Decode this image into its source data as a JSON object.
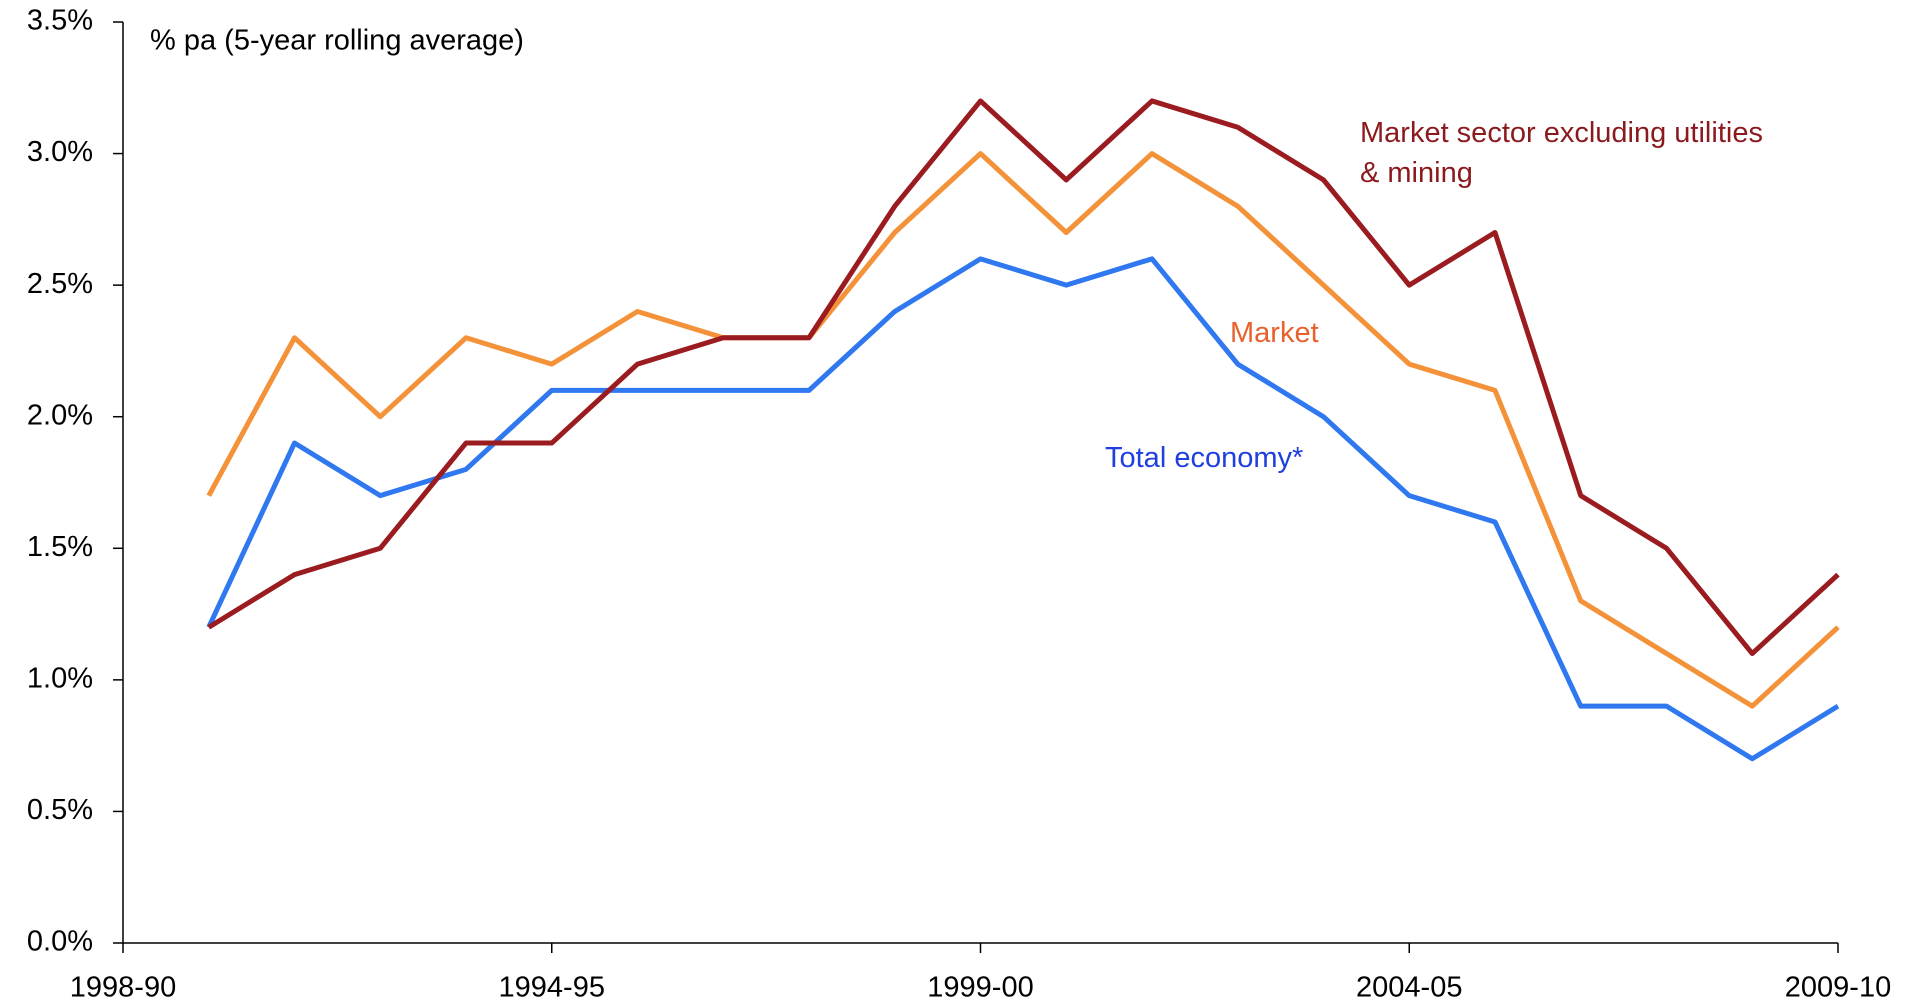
{
  "chart_data": {
    "type": "line",
    "subtitle": "% pa (5-year rolling average)",
    "categories": [
      "1998-90",
      null,
      null,
      null,
      null,
      "1994-95",
      null,
      null,
      null,
      null,
      "1999-00",
      null,
      null,
      null,
      null,
      "2004-05",
      null,
      null,
      null,
      null,
      "2009-10"
    ],
    "series": [
      {
        "name": "Total economy*",
        "color": "#2f78f0",
        "values": [
          null,
          1.2,
          1.9,
          1.7,
          1.8,
          2.1,
          2.1,
          2.1,
          2.1,
          2.4,
          2.6,
          2.5,
          2.6,
          2.2,
          2.0,
          1.7,
          1.6,
          0.9,
          0.9,
          0.7,
          0.9
        ]
      },
      {
        "name": "Market",
        "color": "#f4923a",
        "values": [
          null,
          1.7,
          2.3,
          2.0,
          2.3,
          2.2,
          2.4,
          2.3,
          2.3,
          2.7,
          3.0,
          2.7,
          3.0,
          2.8,
          2.5,
          2.2,
          2.1,
          1.3,
          1.1,
          0.9,
          1.2
        ]
      },
      {
        "name": "Market sector excluding utilities & mining",
        "color": "#9b1c20",
        "values": [
          null,
          1.2,
          1.4,
          1.5,
          1.9,
          1.9,
          2.2,
          2.3,
          2.3,
          2.8,
          3.2,
          2.9,
          3.2,
          3.1,
          2.9,
          2.5,
          2.7,
          1.7,
          1.5,
          1.1,
          1.4
        ]
      }
    ],
    "ylim": [
      0,
      3.5
    ],
    "yticks": [
      {
        "value": 0,
        "label": "0.0%"
      },
      {
        "value": 0.5,
        "label": "0.5%"
      },
      {
        "value": 1,
        "label": "1.0%"
      },
      {
        "value": 1.5,
        "label": "1.5%"
      },
      {
        "value": 2,
        "label": "2.0%"
      },
      {
        "value": 2.5,
        "label": "2.5%"
      },
      {
        "value": 3,
        "label": "3.0%"
      },
      {
        "value": 3.5,
        "label": "3.5%"
      }
    ],
    "grid": false
  }
}
